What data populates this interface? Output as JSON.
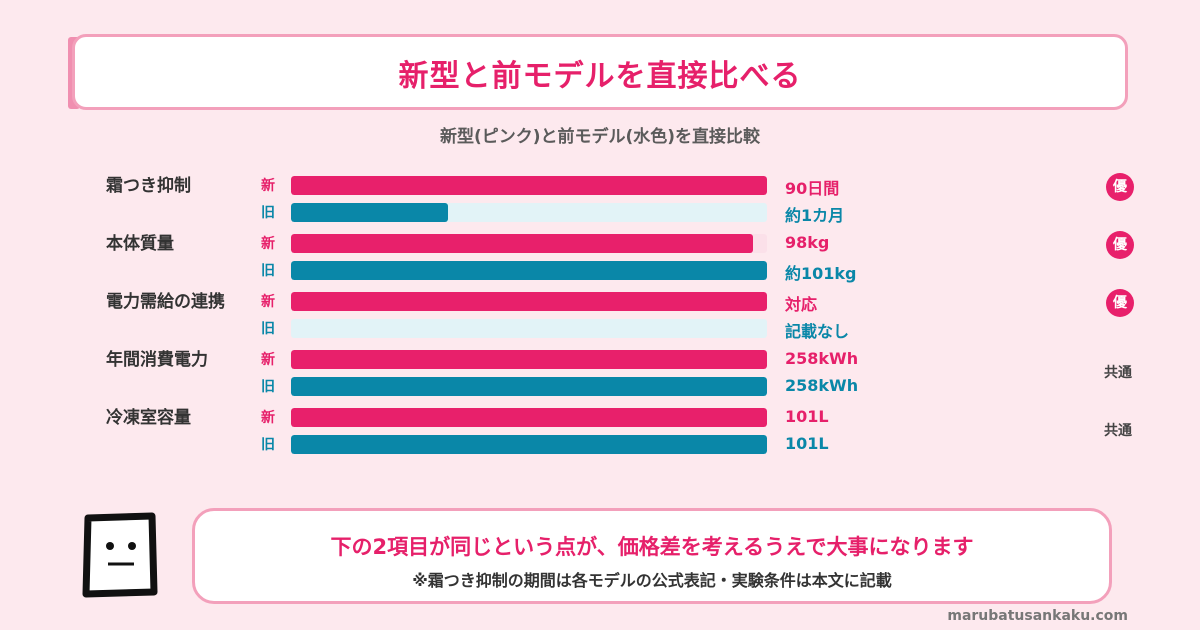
{
  "header": {
    "title": "新型と前モデルを直接比べる"
  },
  "subtitle": "新型(ピンク)と前モデル(水色)を直接比較",
  "colors": {
    "new": "#e8206b",
    "old": "#0a87a8",
    "accent": "#f3a0bb"
  },
  "chart_data": {
    "type": "bar",
    "orientation": "horizontal",
    "categories": [
      "霜つき抑制",
      "本体質量",
      "電力需給の連携",
      "年間消費電力",
      "冷凍室容量"
    ],
    "series": [
      {
        "name": "新",
        "values": [
          100,
          97,
          100,
          100,
          100
        ]
      },
      {
        "name": "旧",
        "values": [
          33,
          100,
          0,
          100,
          100
        ]
      }
    ],
    "value_labels": {
      "new": [
        "90日間",
        "98kg",
        "対応",
        "258kWh",
        "101L"
      ],
      "old": [
        "約1カ月",
        "約101kg",
        "記載なし",
        "258kWh",
        "101L"
      ]
    },
    "verdicts": [
      "優",
      "優",
      "優",
      "共通",
      "共通"
    ],
    "grid": false,
    "legend": "none"
  },
  "bottom": {
    "message": "下の2項目が同じという点が、価格差を考えるうえで大事になります",
    "note": "※霜つき抑制の期間は各モデルの公式表記・実験条件は本文に記載"
  },
  "footer": {
    "site": "marubatusankaku.com"
  }
}
